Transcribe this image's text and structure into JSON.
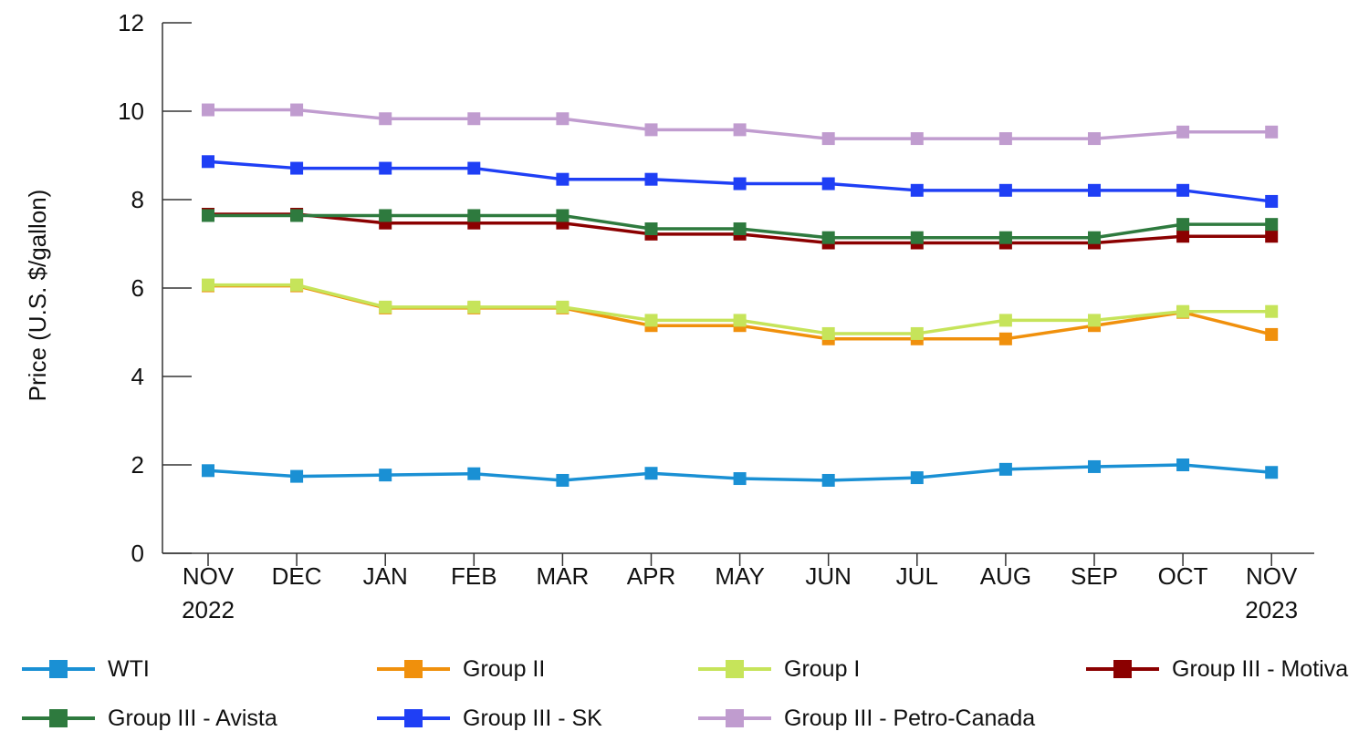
{
  "chart_data": {
    "type": "line",
    "ylabel": "Price (U.S. $/gallon)",
    "ylim": [
      0,
      12
    ],
    "yticks": [
      0,
      2,
      4,
      6,
      8,
      10,
      12
    ],
    "categories": [
      {
        "month": "NOV",
        "year": "2022"
      },
      {
        "month": "DEC",
        "year": ""
      },
      {
        "month": "JAN",
        "year": ""
      },
      {
        "month": "FEB",
        "year": ""
      },
      {
        "month": "MAR",
        "year": ""
      },
      {
        "month": "APR",
        "year": ""
      },
      {
        "month": "MAY",
        "year": ""
      },
      {
        "month": "JUN",
        "year": ""
      },
      {
        "month": "JUL",
        "year": ""
      },
      {
        "month": "AUG",
        "year": ""
      },
      {
        "month": "SEP",
        "year": ""
      },
      {
        "month": "OCT",
        "year": ""
      },
      {
        "month": "NOV",
        "year": "2023"
      }
    ],
    "series": [
      {
        "name": "WTI",
        "color": "#1a90d4",
        "values": [
          1.87,
          1.74,
          1.77,
          1.8,
          1.65,
          1.81,
          1.69,
          1.65,
          1.71,
          1.9,
          1.96,
          2.0,
          1.83
        ]
      },
      {
        "name": "Group II",
        "color": "#f0900c",
        "values": [
          6.05,
          6.05,
          5.55,
          5.55,
          5.55,
          5.15,
          5.15,
          4.85,
          4.85,
          4.85,
          5.15,
          5.45,
          4.95
        ]
      },
      {
        "name": "Group I",
        "color": "#c6e45a",
        "values": [
          6.07,
          6.07,
          5.57,
          5.57,
          5.57,
          5.27,
          5.27,
          4.97,
          4.97,
          5.27,
          5.27,
          5.47,
          5.47
        ]
      },
      {
        "name": "Group III - Motiva",
        "color": "#8b0000",
        "values": [
          7.67,
          7.67,
          7.47,
          7.47,
          7.47,
          7.22,
          7.22,
          7.02,
          7.02,
          7.02,
          7.02,
          7.17,
          7.17
        ]
      },
      {
        "name": "Group III - Avista",
        "color": "#2e7a3e",
        "values": [
          7.64,
          7.64,
          7.64,
          7.64,
          7.64,
          7.34,
          7.34,
          7.14,
          7.14,
          7.14,
          7.14,
          7.44,
          7.44
        ]
      },
      {
        "name": "Group III - SK",
        "color": "#1f3ff5",
        "values": [
          8.86,
          8.71,
          8.71,
          8.71,
          8.46,
          8.46,
          8.36,
          8.36,
          8.21,
          8.21,
          8.21,
          8.21,
          7.96
        ]
      },
      {
        "name": "Group III - Petro-Canada",
        "color": "#c09ccf",
        "values": [
          10.03,
          10.03,
          9.83,
          9.83,
          9.83,
          9.58,
          9.58,
          9.38,
          9.38,
          9.38,
          9.38,
          9.53,
          9.53
        ]
      }
    ],
    "legend_position": "bottom"
  }
}
